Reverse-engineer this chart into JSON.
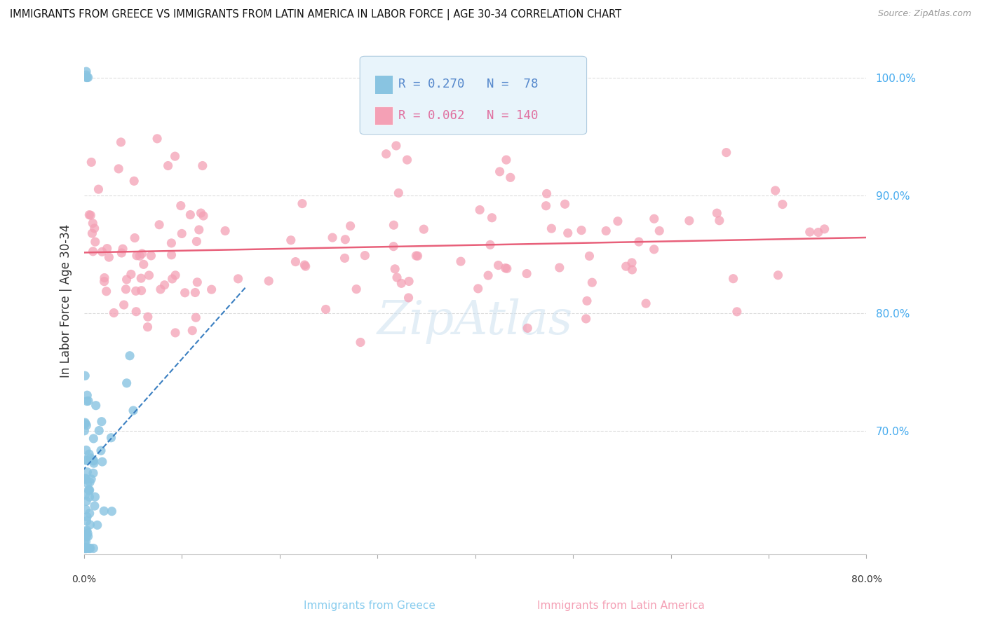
{
  "title": "IMMIGRANTS FROM GREECE VS IMMIGRANTS FROM LATIN AMERICA IN LABOR FORCE | AGE 30-34 CORRELATION CHART",
  "source": "Source: ZipAtlas.com",
  "ylabel": "In Labor Force | Age 30-34",
  "ytick_labels": [
    "70.0%",
    "80.0%",
    "90.0%",
    "100.0%"
  ],
  "ytick_values": [
    0.7,
    0.8,
    0.9,
    1.0
  ],
  "xlim": [
    0.0,
    0.8
  ],
  "ylim": [
    0.595,
    1.025
  ],
  "greece_R": 0.27,
  "greece_N": 78,
  "latin_R": 0.062,
  "latin_N": 140,
  "greece_color": "#89c4e1",
  "latin_color": "#f4a0b5",
  "greece_line_color": "#3a7fc1",
  "latin_line_color": "#e8607a",
  "watermark": "ZipAtlas",
  "watermark_color": "#cce0f0",
  "legend_bg": "#e8f4fb",
  "legend_edge": "#b0cce0",
  "greece_label_color": "#5588cc",
  "latin_label_color": "#e070a0",
  "ytick_color": "#44aaee",
  "bottom_label_greece_color": "#88ccee",
  "bottom_label_latin_color": "#f4a0b5"
}
